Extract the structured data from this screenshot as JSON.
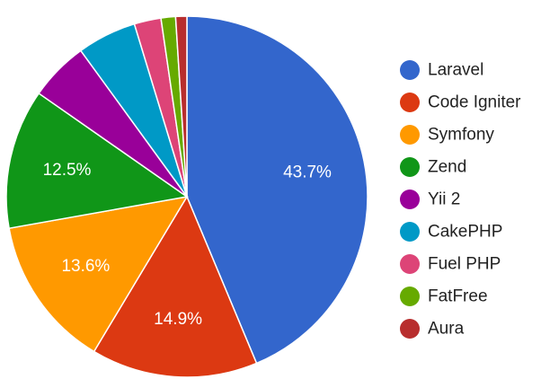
{
  "chart_data": {
    "type": "pie",
    "title": "",
    "start_angle_deg": 0,
    "direction": "clockwise",
    "legend_position": "right",
    "slices": [
      {
        "label": "Laravel",
        "value": 43.7,
        "color": "#3366CC",
        "value_label": "43.7%"
      },
      {
        "label": "Code Igniter",
        "value": 14.9,
        "color": "#DC3912",
        "value_label": "14.9%"
      },
      {
        "label": "Symfony",
        "value": 13.6,
        "color": "#FF9900",
        "value_label": "13.6%"
      },
      {
        "label": "Zend",
        "value": 12.5,
        "color": "#109618",
        "value_label": "12.5%"
      },
      {
        "label": "Yii 2",
        "value": 5.3,
        "color": "#990099",
        "value_label": ""
      },
      {
        "label": "CakePHP",
        "value": 5.3,
        "color": "#0099C6",
        "value_label": ""
      },
      {
        "label": "Fuel PHP",
        "value": 2.4,
        "color": "#DD4477",
        "value_label": ""
      },
      {
        "label": "FatFree",
        "value": 1.3,
        "color": "#66AA00",
        "value_label": ""
      },
      {
        "label": "Aura",
        "value": 1.0,
        "color": "#B82E2E",
        "value_label": ""
      }
    ]
  }
}
